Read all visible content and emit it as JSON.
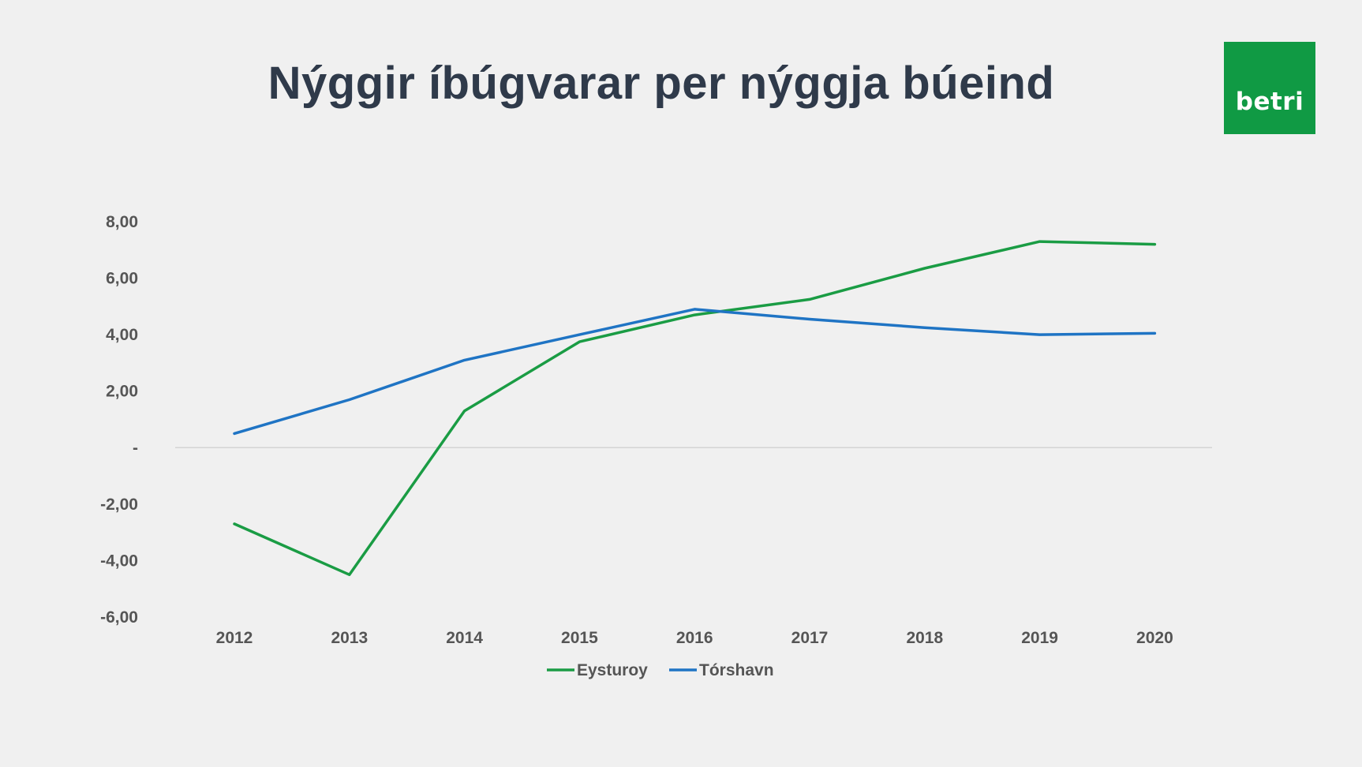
{
  "title": "Nýggir íbúgvarar per nýggja búeind",
  "logo": {
    "text": "betri",
    "color": "#109a44"
  },
  "chart_data": {
    "type": "line",
    "title": "",
    "xlabel": "",
    "ylabel": "",
    "categories": [
      "2012",
      "2013",
      "2014",
      "2015",
      "2016",
      "2017",
      "2018",
      "2019",
      "2020"
    ],
    "ylim": [
      -6,
      8
    ],
    "yticks": [
      8,
      6,
      4,
      2,
      0,
      -2,
      -4,
      -6
    ],
    "ytick_labels": [
      "8,00",
      "6,00",
      "4,00",
      "2,00",
      "-",
      "-2,00",
      "-4,00",
      "-6,00"
    ],
    "grid": false,
    "zero_line": true,
    "legend_position": "bottom",
    "series": [
      {
        "name": "Eysturoy",
        "color": "#1a9c44",
        "values": [
          -2.7,
          -4.5,
          1.3,
          3.75,
          4.7,
          5.25,
          6.35,
          7.3,
          7.2
        ]
      },
      {
        "name": "Tórshavn",
        "color": "#1f74c4",
        "values": [
          0.5,
          1.7,
          3.1,
          4.0,
          4.9,
          4.55,
          4.25,
          4.0,
          4.05
        ]
      }
    ]
  }
}
